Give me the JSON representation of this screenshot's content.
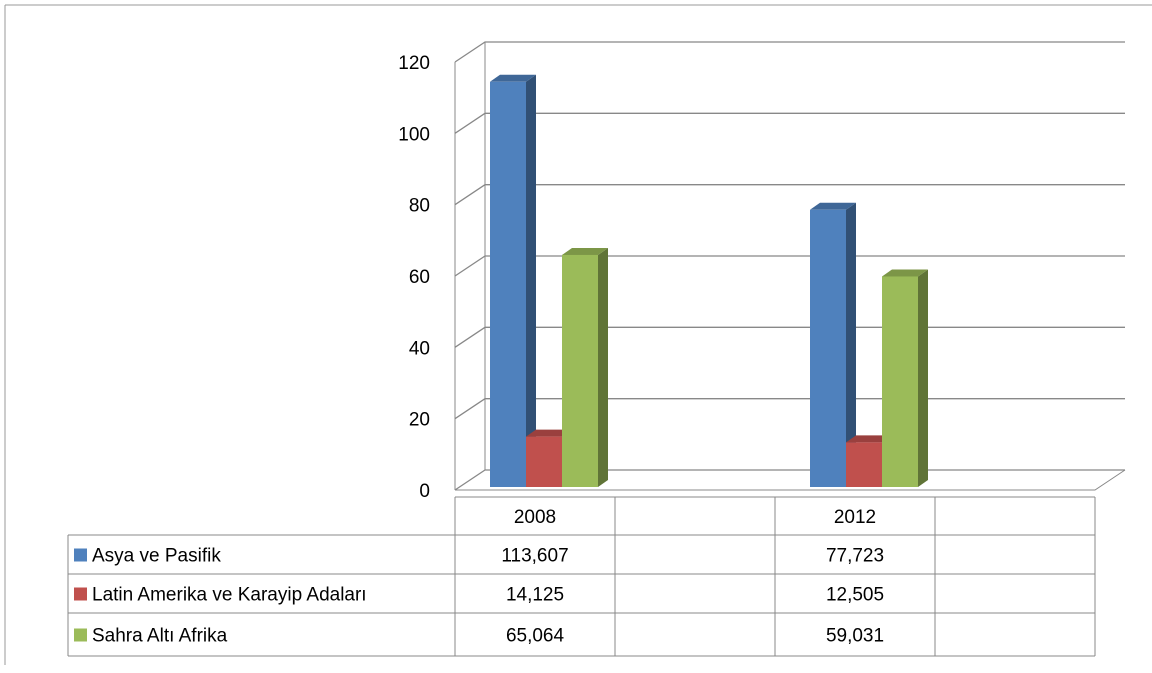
{
  "chart_data": {
    "type": "bar3d",
    "categories": [
      "2008",
      null,
      "2012",
      null
    ],
    "series": [
      {
        "name": "Asya ve Pasifik",
        "color": "#4f81bd",
        "values": [
          113.607,
          null,
          77.723,
          null
        ],
        "value_labels": [
          "113,607",
          null,
          "77,723",
          null
        ]
      },
      {
        "name": "Latin Amerika ve Karayip Adaları",
        "color": "#c0504d",
        "values": [
          14.125,
          null,
          12.505,
          null
        ],
        "value_labels": [
          "14,125",
          null,
          "12,505",
          null
        ]
      },
      {
        "name": "Sahra Altı Afrika",
        "color": "#9bbb59",
        "values": [
          65.064,
          null,
          59.031,
          null
        ],
        "value_labels": [
          "65,064",
          null,
          "59,031",
          null
        ]
      }
    ],
    "ylim": [
      0,
      120
    ],
    "yticks": [
      0,
      20,
      40,
      60,
      80,
      100,
      120
    ],
    "grid": true,
    "legend": "table"
  }
}
